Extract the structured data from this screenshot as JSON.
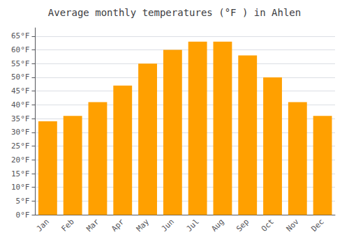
{
  "chart_data": {
    "type": "bar",
    "title": "Average monthly temperatures (°F ) in Ahlen",
    "categories": [
      "Jan",
      "Feb",
      "Mar",
      "Apr",
      "May",
      "Jun",
      "Jul",
      "Aug",
      "Sep",
      "Oct",
      "Nov",
      "Dec"
    ],
    "values": [
      34,
      36,
      41,
      47,
      55,
      60,
      63,
      63,
      58,
      50,
      41,
      36
    ],
    "color": "#FFA000",
    "ylim": [
      0,
      68
    ],
    "yticks": [
      {
        "value": 0,
        "label": "0°F"
      },
      {
        "value": 5,
        "label": "5°F"
      },
      {
        "value": 10,
        "label": "10°F"
      },
      {
        "value": 15,
        "label": "15°F"
      },
      {
        "value": 20,
        "label": "20°F"
      },
      {
        "value": 25,
        "label": "25°F"
      },
      {
        "value": 30,
        "label": "30°F"
      },
      {
        "value": 35,
        "label": "35°F"
      },
      {
        "value": 40,
        "label": "40°F"
      },
      {
        "value": 45,
        "label": "45°F"
      },
      {
        "value": 50,
        "label": "50°F"
      },
      {
        "value": 55,
        "label": "55°F"
      },
      {
        "value": 60,
        "label": "60°F"
      },
      {
        "value": 65,
        "label": "65°F"
      }
    ],
    "grid": true
  }
}
